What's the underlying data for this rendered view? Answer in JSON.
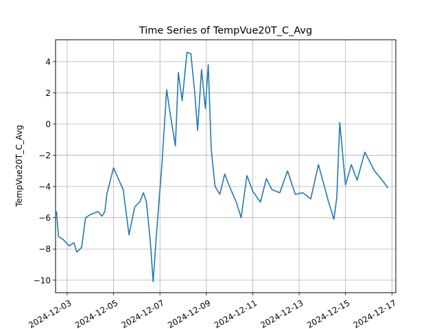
{
  "chart_data": {
    "type": "line",
    "title": "Time Series of TempVue20T_C_Avg",
    "xlabel": "",
    "ylabel": "TempVue20T_C_Avg",
    "grid": true,
    "xlim": [
      "2024-12-02 12:00",
      "2024-12-17 04:00"
    ],
    "ylim": [
      -10.8,
      5.4
    ],
    "x_ticks": [
      "2024-12-03",
      "2024-12-05",
      "2024-12-07",
      "2024-12-09",
      "2024-12-11",
      "2024-12-13",
      "2024-12-15",
      "2024-12-17"
    ],
    "y_ticks": [
      4,
      2,
      0,
      -2,
      -4,
      -6,
      -8,
      -10
    ],
    "y_tick_labels": [
      "4",
      "2",
      "0",
      "−2",
      "−4",
      "−6",
      "−8",
      "−10"
    ],
    "line_color": "#1f77b4",
    "series": [
      {
        "x": [
          "2024-12-02 13:00",
          "2024-12-02 15:00",
          "2024-12-02 20:00",
          "2024-12-03 02:00",
          "2024-12-03 07:00",
          "2024-12-03 10:00",
          "2024-12-03 15:00",
          "2024-12-03 19:00",
          "2024-12-04 00:00",
          "2024-12-04 08:00",
          "2024-12-04 12:00",
          "2024-12-04 15:00",
          "2024-12-04 17:00",
          "2024-12-05 00:00",
          "2024-12-05 10:00",
          "2024-12-05 16:00",
          "2024-12-05 22:00",
          "2024-12-06 03:00",
          "2024-12-06 07:00",
          "2024-12-06 10:00",
          "2024-12-06 14:00",
          "2024-12-06 17:00",
          "2024-12-06 20:00",
          "2024-12-07 02:00",
          "2024-12-07 07:00",
          "2024-12-07 11:00",
          "2024-12-07 16:00",
          "2024-12-07 19:00",
          "2024-12-07 23:00",
          "2024-12-08 04:00",
          "2024-12-08 08:00",
          "2024-12-08 12:00",
          "2024-12-08 15:00",
          "2024-12-08 19:00",
          "2024-12-08 23:00",
          "2024-12-09 02:00",
          "2024-12-09 05:00",
          "2024-12-09 09:00",
          "2024-12-09 14:00",
          "2024-12-09 19:00",
          "2024-12-10 00:00",
          "2024-12-10 07:00",
          "2024-12-10 12:00",
          "2024-12-10 18:00",
          "2024-12-11 00:00",
          "2024-12-11 08:00",
          "2024-12-11 14:00",
          "2024-12-11 20:00",
          "2024-12-12 04:00",
          "2024-12-12 12:00",
          "2024-12-12 20:00",
          "2024-12-13 04:00",
          "2024-12-13 12:00",
          "2024-12-13 20:00",
          "2024-12-14 06:00",
          "2024-12-14 12:00",
          "2024-12-14 15:00",
          "2024-12-14 18:00",
          "2024-12-15 00:00",
          "2024-12-15 06:00",
          "2024-12-15 12:00",
          "2024-12-15 20:00",
          "2024-12-16 06:00",
          "2024-12-16 14:00",
          "2024-12-16 20:00"
        ],
        "y": [
          -5.6,
          -7.2,
          -7.4,
          -7.8,
          -7.6,
          -8.2,
          -7.9,
          -6.0,
          -5.8,
          -5.6,
          -5.9,
          -5.6,
          -4.5,
          -2.8,
          -4.2,
          -7.1,
          -5.3,
          -5.0,
          -4.4,
          -5.0,
          -7.5,
          -10.1,
          -7.4,
          -2.6,
          2.2,
          0.5,
          -1.4,
          3.3,
          1.5,
          4.6,
          4.5,
          2.0,
          -0.4,
          3.5,
          1.0,
          3.8,
          -1.6,
          -4.0,
          -4.5,
          -3.2,
          -4.0,
          -5.0,
          -6.0,
          -3.3,
          -4.3,
          -5.0,
          -3.5,
          -4.2,
          -4.4,
          -3.0,
          -4.5,
          -4.4,
          -4.8,
          -2.6,
          -4.9,
          -6.1,
          -4.7,
          0.1,
          -3.9,
          -2.6,
          -3.6,
          -1.8,
          -3.0,
          -3.6,
          -4.1
        ]
      }
    ]
  }
}
